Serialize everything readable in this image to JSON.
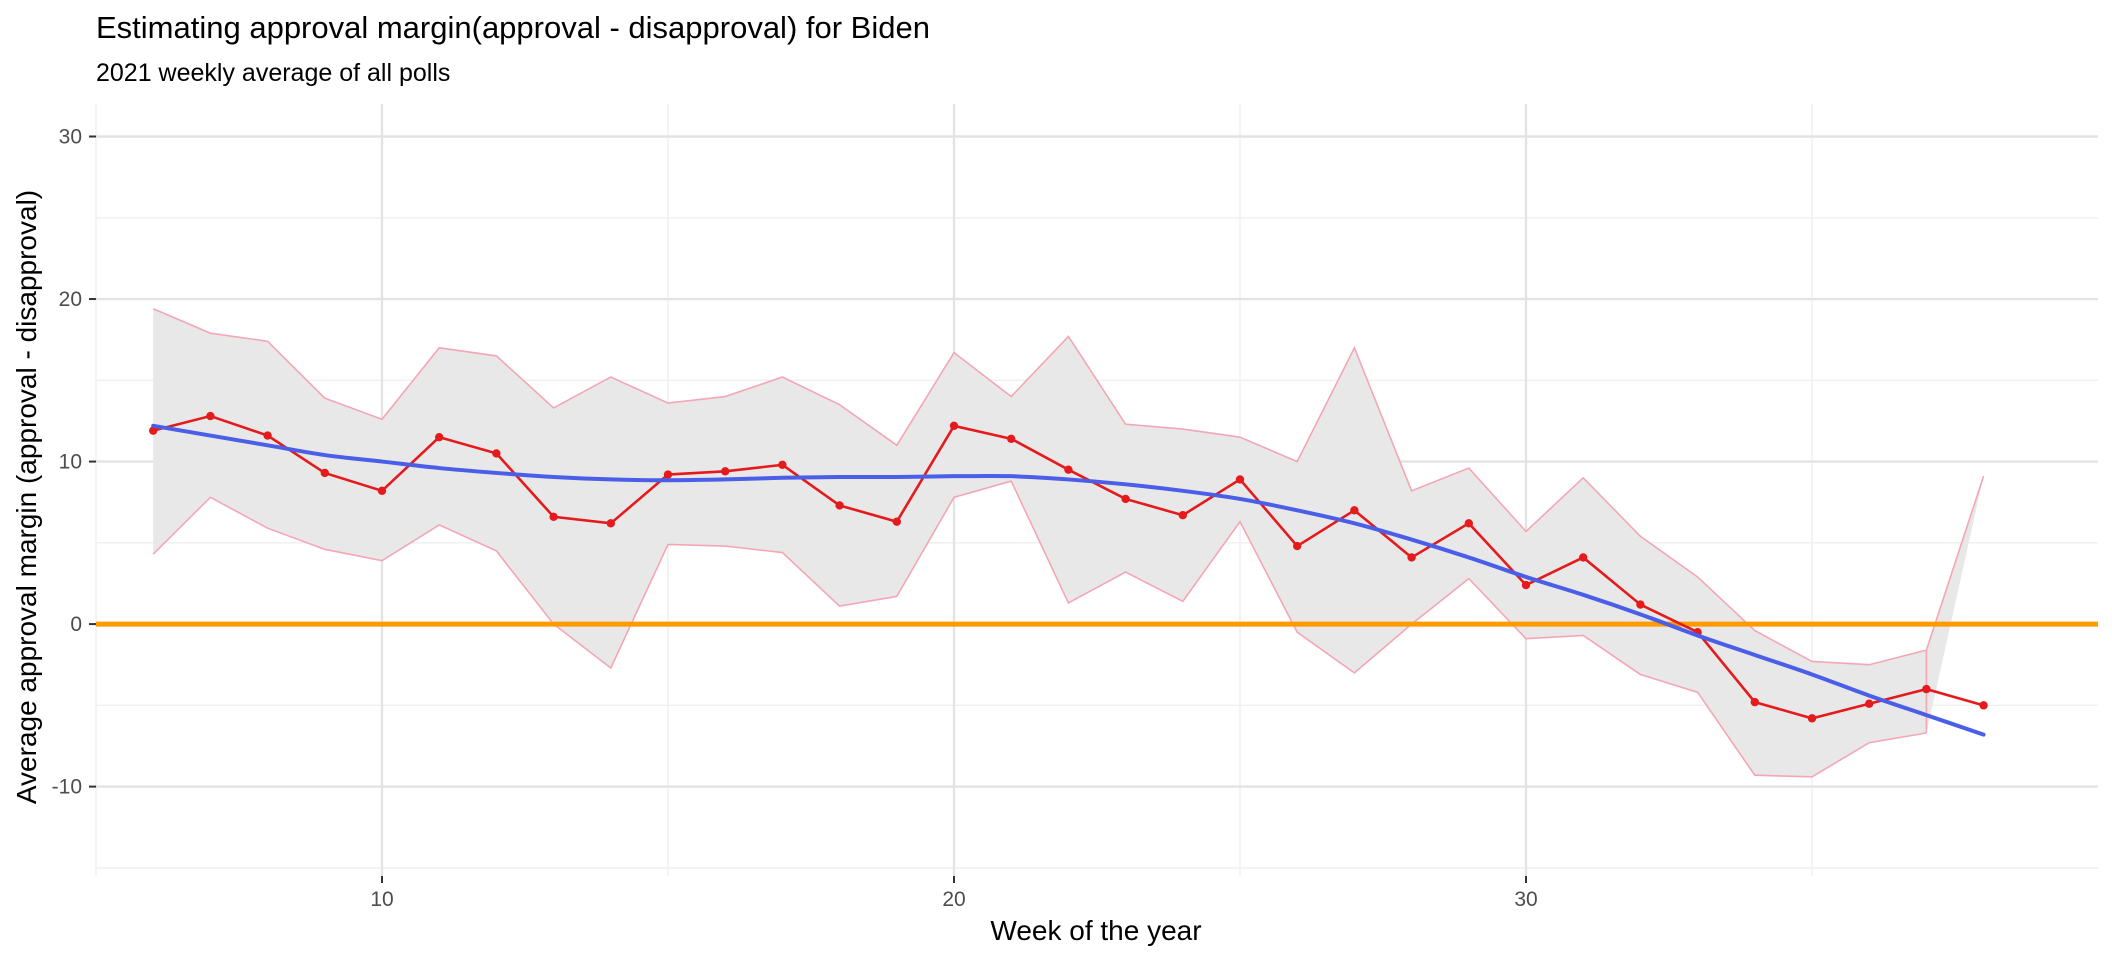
{
  "chart_data": {
    "type": "line",
    "title": "Estimating approval margin(approval - disapproval) for Biden",
    "subtitle": "2021 weekly average of all polls",
    "xlabel": "Week of the year",
    "ylabel": "Average approval margin (approval - disapproval)",
    "xlim": [
      5,
      40
    ],
    "ylim": [
      -15.5,
      32
    ],
    "x_ticks": [
      10,
      20,
      30
    ],
    "x_minor_ticks": [
      5,
      15,
      25,
      35
    ],
    "y_ticks": [
      -10,
      0,
      10,
      20,
      30
    ],
    "y_minor_ticks": [
      -15,
      -5,
      5,
      15,
      25
    ],
    "grid": true,
    "legend": "none",
    "colors": {
      "average_line": "#e41a1c",
      "ribbon_fill": "#e8e8e8",
      "ribbon_edge": "#f4a6b6",
      "smooth_line": "#4a5ee8",
      "zero_line": "#ff9a00",
      "grid": "#e3e3e3",
      "tick_text": "#4d4d4d"
    },
    "series": [
      {
        "kind": "line-with-points",
        "x": [
          6,
          7,
          8,
          9,
          10,
          11,
          12,
          13,
          14,
          15,
          16,
          17,
          18,
          19,
          20,
          21,
          22,
          23,
          24,
          25,
          26,
          27,
          28,
          29,
          30,
          31,
          32,
          33,
          34,
          35,
          36,
          37,
          38
        ],
        "values": [
          11.9,
          12.8,
          11.6,
          9.3,
          8.2,
          11.5,
          10.5,
          6.6,
          6.2,
          9.2,
          9.4,
          9.8,
          7.3,
          6.3,
          12.2,
          11.4,
          9.5,
          7.7,
          6.7,
          8.9,
          4.8,
          7.0,
          4.1,
          6.2,
          2.4,
          4.1,
          1.2,
          -0.5,
          -4.8,
          -5.8,
          -4.9,
          -4.0,
          -5.0
        ]
      },
      {
        "kind": "ribbon",
        "x": [
          6,
          7,
          8,
          9,
          10,
          11,
          12,
          13,
          14,
          15,
          16,
          17,
          18,
          19,
          20,
          21,
          22,
          23,
          24,
          25,
          26,
          27,
          28,
          29,
          30,
          31,
          32,
          33,
          34,
          35,
          36,
          37,
          38
        ],
        "upper": [
          19.4,
          17.9,
          17.4,
          13.9,
          12.6,
          17.0,
          16.5,
          13.3,
          15.2,
          13.6,
          14.0,
          15.2,
          13.5,
          11.0,
          16.7,
          14.0,
          17.7,
          12.3,
          12.0,
          11.5,
          10.0,
          17.0,
          8.2,
          9.6,
          5.7,
          9.0,
          5.4,
          2.9,
          -0.4,
          -2.3,
          -2.5,
          -1.6,
          9.1
        ],
        "lower": [
          4.3,
          7.8,
          5.9,
          4.6,
          3.9,
          6.1,
          4.5,
          0.0,
          -2.7,
          4.9,
          4.8,
          4.4,
          1.1,
          1.7,
          7.8,
          8.8,
          1.3,
          3.2,
          1.4,
          6.3,
          -0.5,
          -3.0,
          0.0,
          2.8,
          -0.9,
          -0.7,
          -3.1,
          -4.2,
          -9.3,
          -9.4,
          -7.3,
          -6.7,
          null
        ]
      },
      {
        "kind": "smooth",
        "x": [
          6,
          7,
          8,
          9,
          10,
          11,
          12,
          13,
          14,
          15,
          16,
          17,
          18,
          19,
          20,
          21,
          22,
          23,
          24,
          25,
          26,
          27,
          28,
          29,
          30,
          31,
          32,
          33,
          34,
          35,
          36,
          37,
          38
        ],
        "values": [
          12.2,
          11.6,
          11.0,
          10.4,
          10.0,
          9.6,
          9.3,
          9.05,
          8.9,
          8.85,
          8.9,
          9.0,
          9.05,
          9.05,
          9.1,
          9.1,
          8.9,
          8.6,
          8.2,
          7.7,
          7.0,
          6.2,
          5.2,
          4.1,
          2.9,
          1.8,
          0.6,
          -0.7,
          -1.9,
          -3.1,
          -4.4,
          -5.6,
          -6.8
        ]
      },
      {
        "kind": "hline",
        "y": 0
      }
    ]
  }
}
